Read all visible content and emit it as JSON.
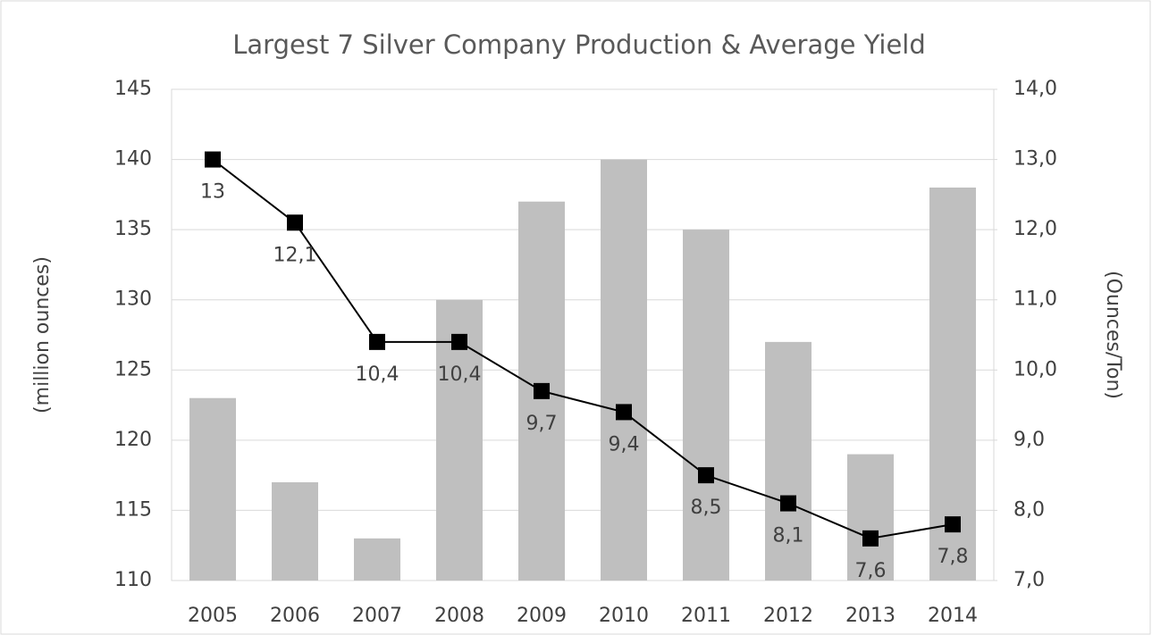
{
  "chart_data": {
    "type": "bar",
    "title": "Largest 7 Silver Company Production & Average Yield",
    "y_label": "(million ounces)",
    "y2_label": "(Ounces/Ton)",
    "categories": [
      "2005",
      "2006",
      "2007",
      "2008",
      "2009",
      "2010",
      "2011",
      "2012",
      "2013",
      "2014"
    ],
    "series": [
      {
        "type": "bar",
        "color": "#bfbfbf",
        "values": [
          123,
          117,
          113,
          130,
          137,
          140,
          135,
          127,
          119,
          138
        ]
      },
      {
        "type": "line",
        "axis": "y2",
        "color": "#000000",
        "values": [
          13,
          12.1,
          10.4,
          10.4,
          9.7,
          9.4,
          8.5,
          8.1,
          7.6,
          7.8
        ],
        "value_labels": [
          "13",
          "12,1",
          "10,4",
          "10,4",
          "9,7",
          "9,4",
          "8,5",
          "8,1",
          "7,6",
          "7,8"
        ]
      }
    ],
    "ylim": [
      110,
      145
    ],
    "yticks": [
      110,
      115,
      120,
      125,
      130,
      135,
      140,
      145
    ],
    "y2lim": [
      7,
      14
    ],
    "y2ticks": [
      {
        "value": 7,
        "label": "7,0"
      },
      {
        "value": 8,
        "label": "8,0"
      },
      {
        "value": 9,
        "label": "9,0"
      },
      {
        "value": 10,
        "label": "10,0"
      },
      {
        "value": 11,
        "label": "11,0"
      },
      {
        "value": 12,
        "label": "12,0"
      },
      {
        "value": 13,
        "label": "13,0"
      },
      {
        "value": 14,
        "label": "14,0"
      }
    ],
    "grid": true
  }
}
